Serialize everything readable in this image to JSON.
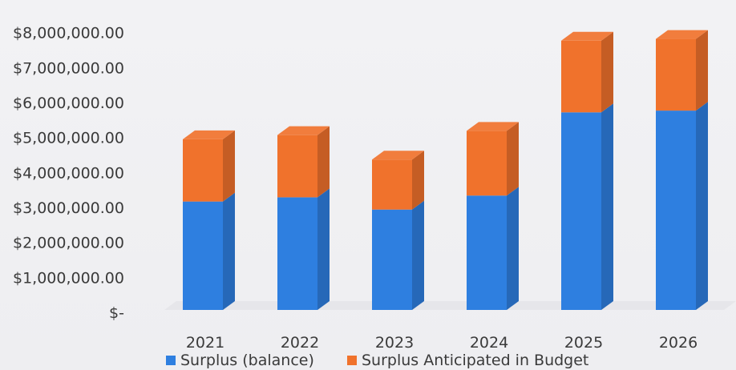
{
  "chart_data": {
    "type": "bar",
    "stacked": true,
    "style": "3d-column",
    "categories": [
      "2021",
      "2022",
      "2023",
      "2024",
      "2025",
      "2026"
    ],
    "series": [
      {
        "name": "Surplus (balance)",
        "color": "#2e7fe0",
        "values": [
          3100000,
          3220000,
          2870000,
          3270000,
          5650000,
          5700000
        ]
      },
      {
        "name": "Surplus Anticipated in Budget",
        "color": "#f0722c",
        "values": [
          1780000,
          1780000,
          1430000,
          1850000,
          2050000,
          2050000
        ]
      }
    ],
    "y_ticks": [
      "$-",
      "$1,000,000.00",
      "$2,000,000.00",
      "$3,000,000.00",
      "$4,000,000.00",
      "$5,000,000.00",
      "$6,000,000.00",
      "$7,000,000.00",
      "$8,000,000.00"
    ],
    "ylim": [
      0,
      8000000
    ],
    "grid": false,
    "legend_position": "bottom"
  }
}
